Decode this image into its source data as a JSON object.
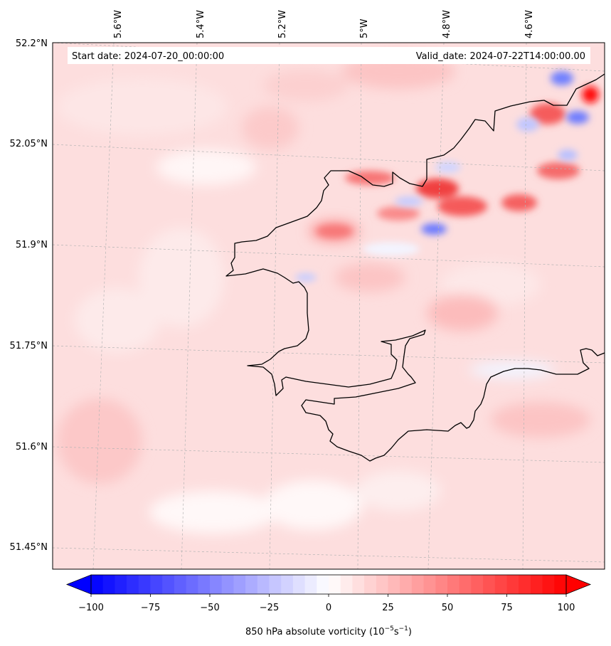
{
  "map": {
    "start_label": "Start date: 2024-07-20_00:00:00",
    "valid_label": "Valid_date: 2024-07-22T14:00:00.00",
    "lon_ticks": [
      "5.6°W",
      "5.4°W",
      "5.2°W",
      "5°W",
      "4.8°W",
      "4.6°W"
    ],
    "lat_ticks": [
      "52.2°N",
      "52.05°N",
      "51.9°N",
      "51.75°N",
      "51.6°N",
      "51.45°N"
    ],
    "coastline_color": "#000000",
    "gridline_color": "#b4b4b4"
  },
  "colorbar": {
    "min": -100,
    "max": 100,
    "step": 5,
    "extend": "both",
    "ticks": [
      "−100",
      "−75",
      "−50",
      "−25",
      "0",
      "25",
      "50",
      "75",
      "100"
    ],
    "label_main": "850 hPa absolute vorticity (10",
    "label_exp1": "−5",
    "label_mid": "s",
    "label_exp2": "−1",
    "label_end": ")",
    "negative_color": "#0000ff",
    "zero_color": "#ffffff",
    "positive_color": "#ff0000"
  }
}
